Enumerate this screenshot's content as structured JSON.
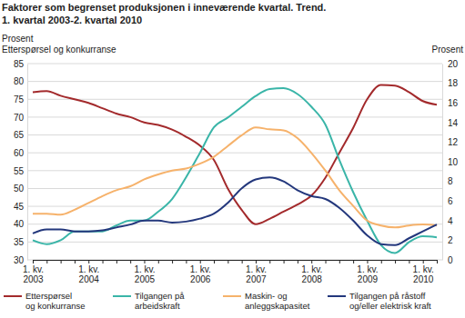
{
  "chart_data": {
    "type": "line",
    "title": "Faktorer som begrenset produksjonen i inneværende kvartal. Trend.",
    "subtitle": "1. kvartal 2003-2. kvartal 2010",
    "ylabel": [
      "Prosent",
      "Etterspørsel og konkurranse"
    ],
    "y2label": "Prosent",
    "categories": [
      "1. kv. 2003",
      null,
      null,
      null,
      "1. kv. 2004",
      null,
      null,
      null,
      "1. kv. 2005",
      null,
      null,
      null,
      "1. kv. 2006",
      null,
      null,
      null,
      "1. kv. 2007",
      null,
      null,
      null,
      "1. kv. 2008",
      null,
      null,
      null,
      "1. kv. 2009",
      null,
      null,
      null,
      "1. kv. 2010",
      null
    ],
    "ylim": [
      30,
      85
    ],
    "yticks": [
      30,
      35,
      40,
      45,
      50,
      55,
      60,
      65,
      70,
      75,
      80,
      85
    ],
    "y2lim": [
      0,
      20
    ],
    "y2ticks": [
      0,
      2,
      4,
      6,
      8,
      10,
      12,
      14,
      16,
      18,
      20
    ],
    "grid": true,
    "legend": "bottom",
    "series": [
      {
        "name": "Etterspørsel og konkurranse",
        "color": "#a32a2c",
        "values": [
          77,
          77.3,
          76,
          75,
          74,
          72.5,
          71,
          70,
          68.5,
          67.8,
          66.5,
          64.5,
          62,
          58,
          50,
          44,
          40,
          41.5,
          43.5,
          45.5,
          48,
          53,
          60,
          67,
          75,
          79,
          78.8,
          77,
          74.5,
          73.5
        ]
      },
      {
        "name": "Tilgangen på arbeidskraft",
        "color": "#3ab5a8",
        "axis": "y2",
        "values": [
          2.0,
          1.6,
          2.0,
          2.9,
          2.9,
          2.9,
          3.5,
          4.0,
          4.0,
          4.9,
          6.2,
          8.4,
          10.9,
          13.5,
          14.5,
          15.6,
          16.7,
          17.4,
          17.5,
          16.9,
          15.6,
          13.8,
          10.2,
          6.9,
          4.0,
          1.5,
          0.7,
          1.8,
          2.4,
          2.3
        ]
      },
      {
        "name": "Maskin- og anleggskapasitet",
        "color": "#f6b26b",
        "axis": "y2",
        "values": [
          4.7,
          4.7,
          4.6,
          5.1,
          5.8,
          6.5,
          7.1,
          7.5,
          8.2,
          8.7,
          9.1,
          9.3,
          9.8,
          10.5,
          11.6,
          12.7,
          13.5,
          13.3,
          13.2,
          12.4,
          10.9,
          9.1,
          7.1,
          5.5,
          4.0,
          3.5,
          3.3,
          3.5,
          3.6,
          3.5
        ]
      },
      {
        "name": "Tilgangen på råstoff og/eller elektrisk kraft",
        "color": "#23377c",
        "axis": "y2",
        "values": [
          2.7,
          3.1,
          3.1,
          2.9,
          2.9,
          3.0,
          3.3,
          3.6,
          4.0,
          4.0,
          3.8,
          3.9,
          4.2,
          4.7,
          5.8,
          7.3,
          8.2,
          8.4,
          8.0,
          7.1,
          6.5,
          6.2,
          5.3,
          4.0,
          2.5,
          1.6,
          1.5,
          2.2,
          2.9,
          3.6
        ]
      }
    ]
  }
}
